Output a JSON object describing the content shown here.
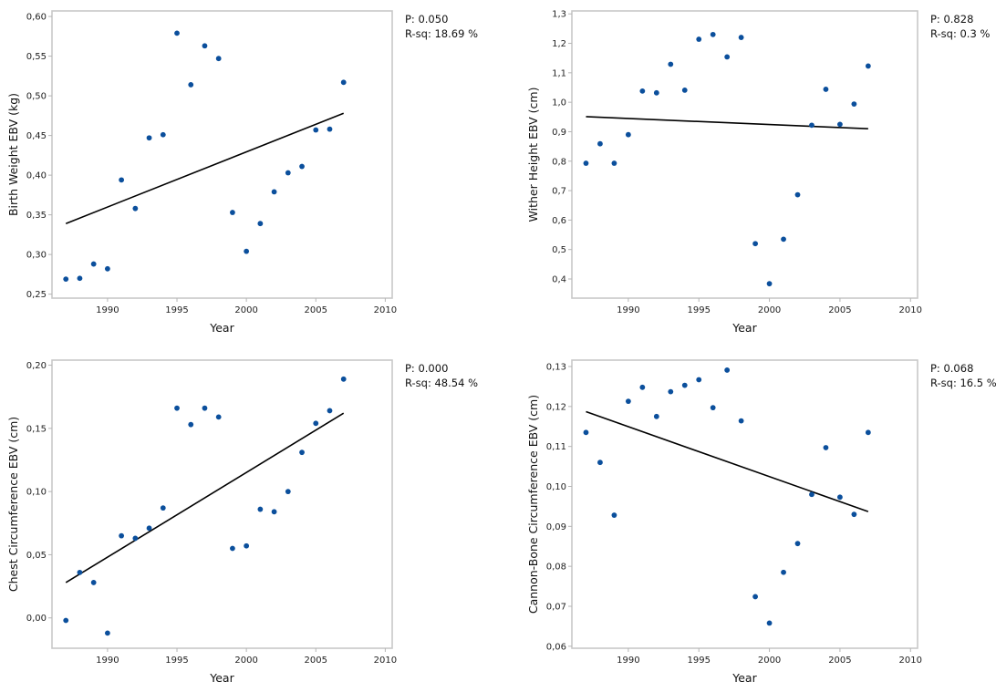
{
  "chart_data": [
    {
      "type": "scatter",
      "title": "",
      "xlabel": "Year",
      "ylabel": "Birth Weight EBV (kg)",
      "xlim": [
        1986,
        2010.5
      ],
      "ylim": [
        0.245,
        0.607
      ],
      "xticks": [
        1990,
        1995,
        2000,
        2005,
        2010
      ],
      "xtick_labels": [
        "1990",
        "1995",
        "2000",
        "2005",
        "2010"
      ],
      "yticks": [
        0.25,
        0.3,
        0.35,
        0.4,
        0.45,
        0.5,
        0.55,
        0.6
      ],
      "ytick_labels": [
        "0,25",
        "0,30",
        "0,35",
        "0,40",
        "0,45",
        "0,50",
        "0,55",
        "0,60"
      ],
      "grid": false,
      "point_color": "#0b4f9c",
      "x": [
        1987,
        1988,
        1989,
        1990,
        1991,
        1992,
        1993,
        1994,
        1995,
        1996,
        1997,
        1998,
        1999,
        2000,
        2001,
        2002,
        2003,
        2004,
        2005,
        2006,
        2007
      ],
      "y": [
        0.269,
        0.27,
        0.288,
        0.282,
        0.394,
        0.358,
        0.447,
        0.451,
        0.579,
        0.514,
        0.563,
        0.547,
        0.353,
        0.304,
        0.339,
        0.379,
        0.403,
        0.411,
        0.457,
        0.458,
        0.517
      ],
      "fit_line": {
        "x": [
          1987,
          2007
        ],
        "y": [
          0.339,
          0.478
        ]
      },
      "stats": {
        "p": "P: 0.050",
        "rsq": "R-sq: 18.69 %"
      }
    },
    {
      "type": "scatter",
      "title": "",
      "xlabel": "Year",
      "ylabel": "Wither Height EBV (cm)",
      "xlim": [
        1986,
        2010.5
      ],
      "ylim": [
        0.335,
        1.31
      ],
      "xticks": [
        1990,
        1995,
        2000,
        2005,
        2010
      ],
      "xtick_labels": [
        "1990",
        "1995",
        "2000",
        "2005",
        "2010"
      ],
      "yticks": [
        0.4,
        0.5,
        0.6,
        0.7,
        0.8,
        0.9,
        1.0,
        1.1,
        1.2,
        1.3
      ],
      "ytick_labels": [
        "0,4",
        "0,5",
        "0,6",
        "0,7",
        "0,8",
        "0,9",
        "1,0",
        "1,1",
        "1,2",
        "1,3"
      ],
      "grid": false,
      "point_color": "#0b4f9c",
      "x": [
        1987,
        1988,
        1989,
        1990,
        1991,
        1992,
        1993,
        1994,
        1995,
        1996,
        1997,
        1998,
        1999,
        2000,
        2001,
        2002,
        2003,
        2004,
        2005,
        2006,
        2007
      ],
      "y": [
        0.793,
        0.859,
        0.793,
        0.89,
        1.038,
        1.032,
        1.129,
        1.041,
        1.214,
        1.23,
        1.154,
        1.22,
        0.52,
        0.384,
        0.535,
        0.686,
        0.922,
        1.044,
        0.925,
        0.994,
        1.123
      ],
      "fit_line": {
        "x": [
          1987,
          2007
        ],
        "y": [
          0.951,
          0.91
        ]
      },
      "stats": {
        "p": "P: 0.828",
        "rsq": "R-sq: 0.3 %"
      }
    },
    {
      "type": "scatter",
      "title": "",
      "xlabel": "Year",
      "ylabel": "Chest Circumference EBV (cm)",
      "xlim": [
        1986,
        2010.5
      ],
      "ylim": [
        -0.024,
        0.204
      ],
      "xticks": [
        1990,
        1995,
        2000,
        2005,
        2010
      ],
      "xtick_labels": [
        "1990",
        "1995",
        "2000",
        "2005",
        "2010"
      ],
      "yticks": [
        0.0,
        0.05,
        0.1,
        0.15,
        0.2
      ],
      "ytick_labels": [
        "0,00",
        "0,05",
        "0,10",
        "0,15",
        "0,20"
      ],
      "grid": false,
      "point_color": "#0b4f9c",
      "x": [
        1987,
        1988,
        1989,
        1990,
        1991,
        1992,
        1993,
        1994,
        1995,
        1996,
        1997,
        1998,
        1999,
        2000,
        2001,
        2002,
        2003,
        2004,
        2005,
        2006,
        2007
      ],
      "y": [
        -0.002,
        0.036,
        0.028,
        -0.012,
        0.065,
        0.063,
        0.071,
        0.087,
        0.166,
        0.153,
        0.166,
        0.159,
        0.055,
        0.057,
        0.086,
        0.084,
        0.1,
        0.131,
        0.154,
        0.164,
        0.189
      ],
      "fit_line": {
        "x": [
          1987,
          2007
        ],
        "y": [
          0.028,
          0.162
        ]
      },
      "stats": {
        "p": "P: 0.000",
        "rsq": "R-sq: 48.54 %"
      }
    },
    {
      "type": "scatter",
      "title": "",
      "xlabel": "Year",
      "ylabel": "Cannon-Bone Circumference EBV (cm)",
      "xlim": [
        1986,
        2010.5
      ],
      "ylim": [
        0.0595,
        0.1316
      ],
      "xticks": [
        1990,
        1995,
        2000,
        2005,
        2010
      ],
      "xtick_labels": [
        "1990",
        "1995",
        "2000",
        "2005",
        "2010"
      ],
      "yticks": [
        0.06,
        0.07,
        0.08,
        0.09,
        0.1,
        0.11,
        0.12,
        0.13
      ],
      "ytick_labels": [
        "0,06",
        "0,07",
        "0,08",
        "0,09",
        "0,10",
        "0,11",
        "0,12",
        "0,13"
      ],
      "grid": false,
      "point_color": "#0b4f9c",
      "x": [
        1987,
        1988,
        1989,
        1990,
        1991,
        1992,
        1993,
        1994,
        1995,
        1996,
        1997,
        1998,
        1999,
        2000,
        2001,
        2002,
        2003,
        2004,
        2005,
        2006,
        2007
      ],
      "y": [
        0.1135,
        0.106,
        0.0928,
        0.1213,
        0.1248,
        0.1175,
        0.1237,
        0.1253,
        0.1267,
        0.1197,
        0.1291,
        0.1164,
        0.0724,
        0.0658,
        0.0785,
        0.0857,
        0.098,
        0.1097,
        0.0973,
        0.093,
        0.1135
      ],
      "fit_line": {
        "x": [
          1987,
          2007
        ],
        "y": [
          0.1187,
          0.0937
        ]
      },
      "stats": {
        "p": "P: 0.068",
        "rsq": "R-sq: 16.5 %"
      }
    }
  ]
}
